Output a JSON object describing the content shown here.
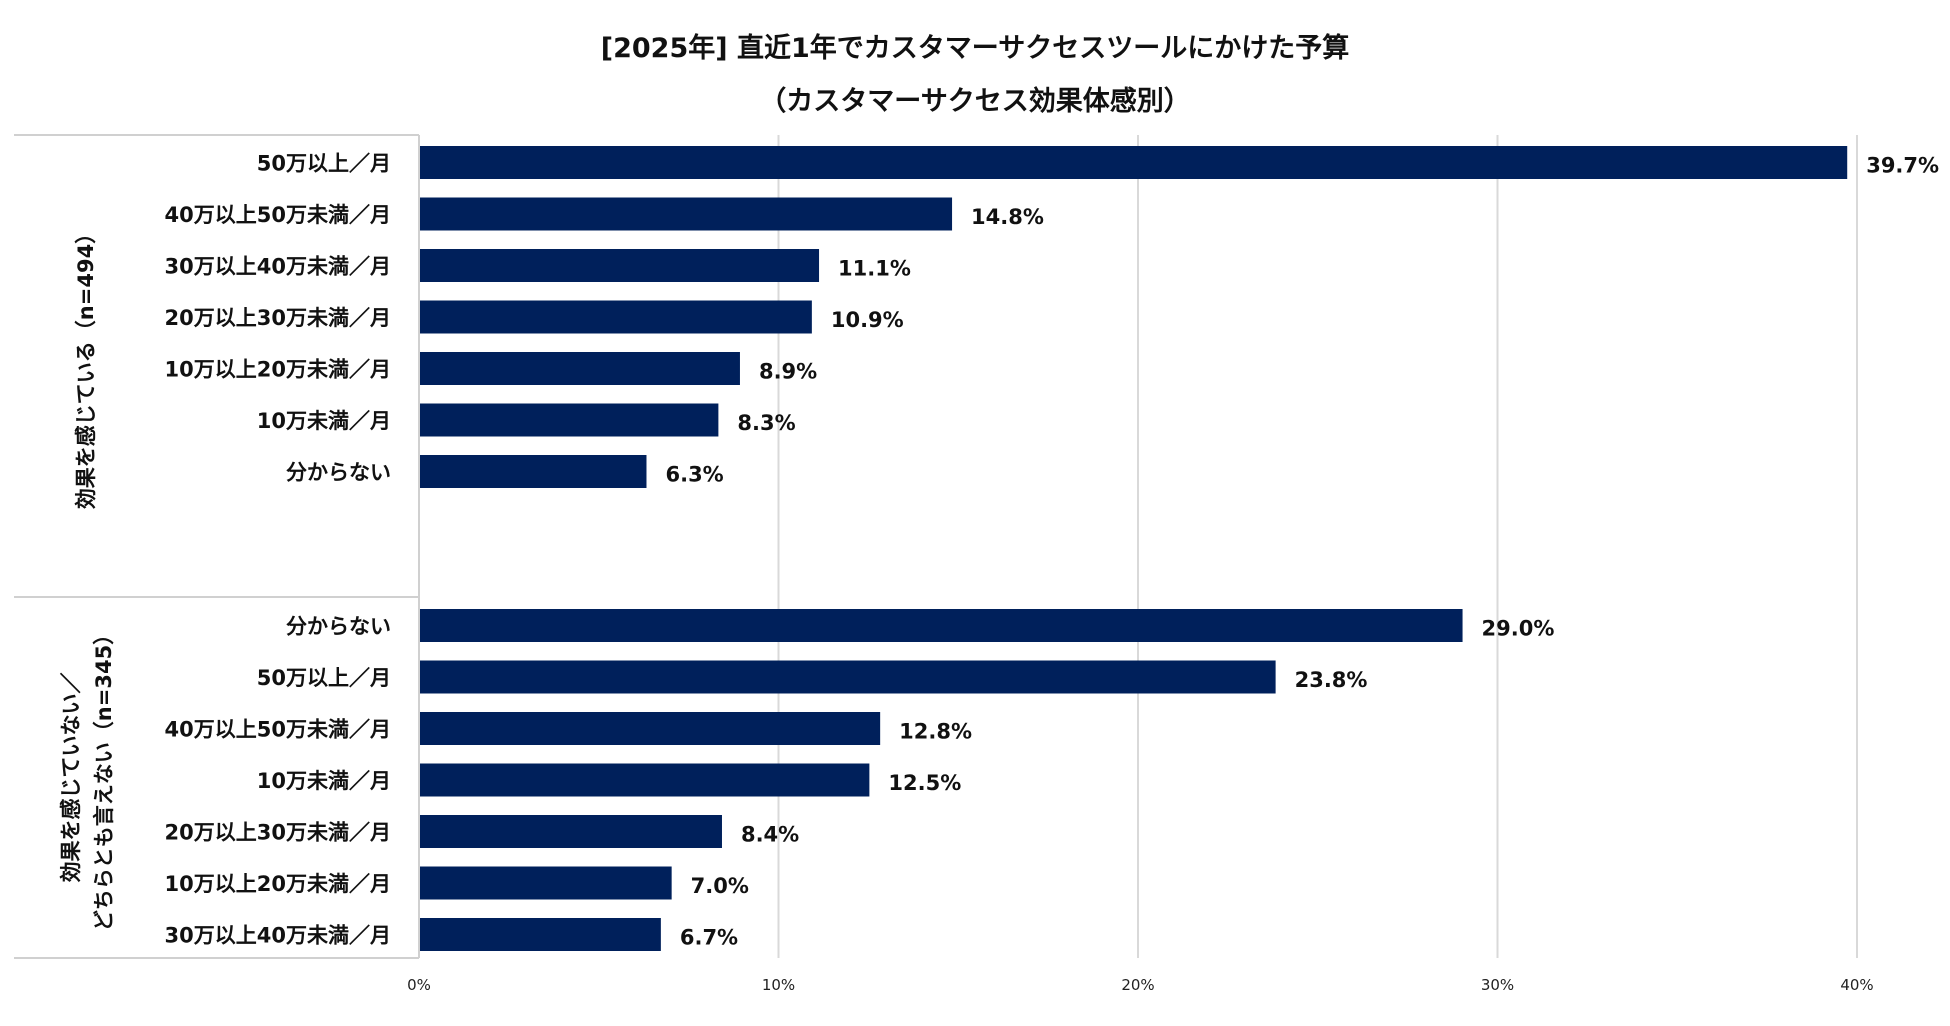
{
  "chart_data": {
    "type": "bar",
    "orientation": "horizontal",
    "title": "[2025年] 直近1年でカスタマーサクセスツールにかけた予算",
    "subtitle": "（カスタマーサクセス効果体感別）",
    "xlim": [
      0,
      40
    ],
    "ticks": [
      "0%",
      "10%",
      "20%",
      "30%",
      "40%"
    ],
    "tick_values": [
      0,
      10,
      20,
      30,
      40
    ],
    "bar_color": "#00205b",
    "grid_color": "#d9d9d9",
    "groups": [
      {
        "label": "効果を感じている（n=494）",
        "label_lines": [
          "効果を感じている（n=494）"
        ],
        "categories": [
          "50万以上／月",
          "40万以上50万未満／月",
          "30万以上40万未満／月",
          "20万以上30万未満／月",
          "10万以上20万未満／月",
          "10万未満／月",
          "分からない"
        ],
        "values": [
          39.7,
          14.8,
          11.1,
          10.9,
          8.9,
          8.3,
          6.3
        ],
        "value_labels": [
          "39.7%",
          "14.8%",
          "11.1%",
          "10.9%",
          "8.9%",
          "8.3%",
          "6.3%"
        ]
      },
      {
        "label": "効果を感じていない／どちらとも言えない（n=345）",
        "label_lines": [
          "効果を感じていない／",
          "どちらとも言えない（n=345）"
        ],
        "categories": [
          "分からない",
          "50万以上／月",
          "40万以上50万未満／月",
          "10万未満／月",
          "20万以上30万未満／月",
          "10万以上20万未満／月",
          "30万以上40万未満／月"
        ],
        "values": [
          29.0,
          23.8,
          12.8,
          12.5,
          8.4,
          7.0,
          6.7
        ],
        "value_labels": [
          "29.0%",
          "23.8%",
          "12.8%",
          "12.5%",
          "8.4%",
          "7.0%",
          "6.7%"
        ]
      }
    ]
  }
}
